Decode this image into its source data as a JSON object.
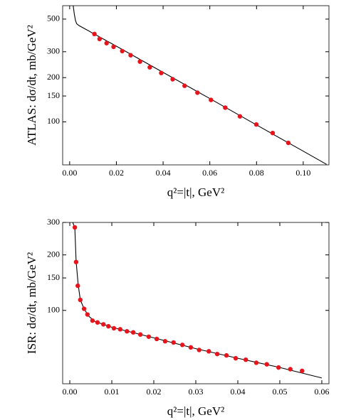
{
  "chart_data": [
    {
      "type": "scatter",
      "xlabel": "q²=|t|, GeV²",
      "ylabel": "ATLAS: dσ/dt, mb/GeV²",
      "log_y": true,
      "xlim": [
        -0.003,
        0.111
      ],
      "ylim": [
        51,
        617
      ],
      "xticks": [
        {
          "value": 0,
          "label": "0.00"
        },
        0.02,
        0.04,
        0.06,
        0.08,
        {
          "value": 0.1,
          "label": "0.10"
        }
      ],
      "yticks": [
        100,
        150,
        200,
        300,
        500
      ],
      "points": {
        "color": "#e8141c",
        "x": [
          0.0106,
          0.0128,
          0.0158,
          0.0188,
          0.0225,
          0.0261,
          0.0301,
          0.0343,
          0.0392,
          0.0441,
          0.0492,
          0.0547,
          0.0605,
          0.0666,
          0.0729,
          0.0799,
          0.0869,
          0.0936
        ],
        "y": [
          396,
          366,
          343,
          324,
          303,
          284,
          257,
          235,
          215,
          195,
          176,
          158,
          141,
          125,
          109,
          96,
          84,
          72
        ]
      },
      "line": {
        "color": "#000000",
        "x": [
          0.0015,
          0.002,
          0.0025,
          0.003,
          0.004,
          0.02,
          0.04,
          0.06,
          0.08,
          0.1,
          0.11
        ],
        "y": [
          617,
          540,
          490,
          465,
          452,
          327,
          217,
          144,
          95.3,
          63.2,
          51.4
        ]
      }
    },
    {
      "type": "scatter",
      "xlabel": "q²=|t|, GeV²",
      "ylabel": "ISR: dσ/dt, mb/GeV²",
      "log_y": true,
      "xlim": [
        -0.0017,
        0.0617
      ],
      "ylim": [
        40,
        300
      ],
      "xticks": [
        {
          "value": 0,
          "label": "0.00"
        },
        0.01,
        0.02,
        0.03,
        0.04,
        0.05,
        0.06
      ],
      "yticks": [
        100,
        150,
        200,
        300
      ],
      "points": {
        "color": "#e8141c",
        "x": [
          0.0012,
          0.0015,
          0.0019,
          0.0025,
          0.0034,
          0.0042,
          0.0054,
          0.0066,
          0.008,
          0.0092,
          0.0105,
          0.012,
          0.0136,
          0.0151,
          0.0168,
          0.0188,
          0.0207,
          0.0227,
          0.0247,
          0.0268,
          0.0288,
          0.0308,
          0.0331,
          0.0351,
          0.0373,
          0.0395,
          0.0419,
          0.0444,
          0.0469,
          0.0497,
          0.0525,
          0.0553
        ],
        "y": [
          282,
          183,
          136,
          114,
          102,
          95,
          88,
          86,
          84,
          82,
          80,
          79,
          77,
          76,
          74,
          72,
          70,
          68,
          67,
          65,
          63,
          61,
          60,
          58,
          57,
          55,
          54,
          52,
          51,
          49,
          48,
          47
        ]
      },
      "line": {
        "color": "#000000",
        "x": [
          0.0007,
          0.0012,
          0.0015,
          0.002,
          0.0025,
          0.0034,
          0.0045,
          0.006,
          0.008,
          0.01,
          0.02,
          0.03,
          0.04,
          0.05,
          0.06
        ],
        "y": [
          300,
          280,
          185,
          138,
          114,
          102,
          93,
          87,
          84,
          81,
          71,
          62,
          55,
          49,
          43
        ]
      }
    }
  ]
}
